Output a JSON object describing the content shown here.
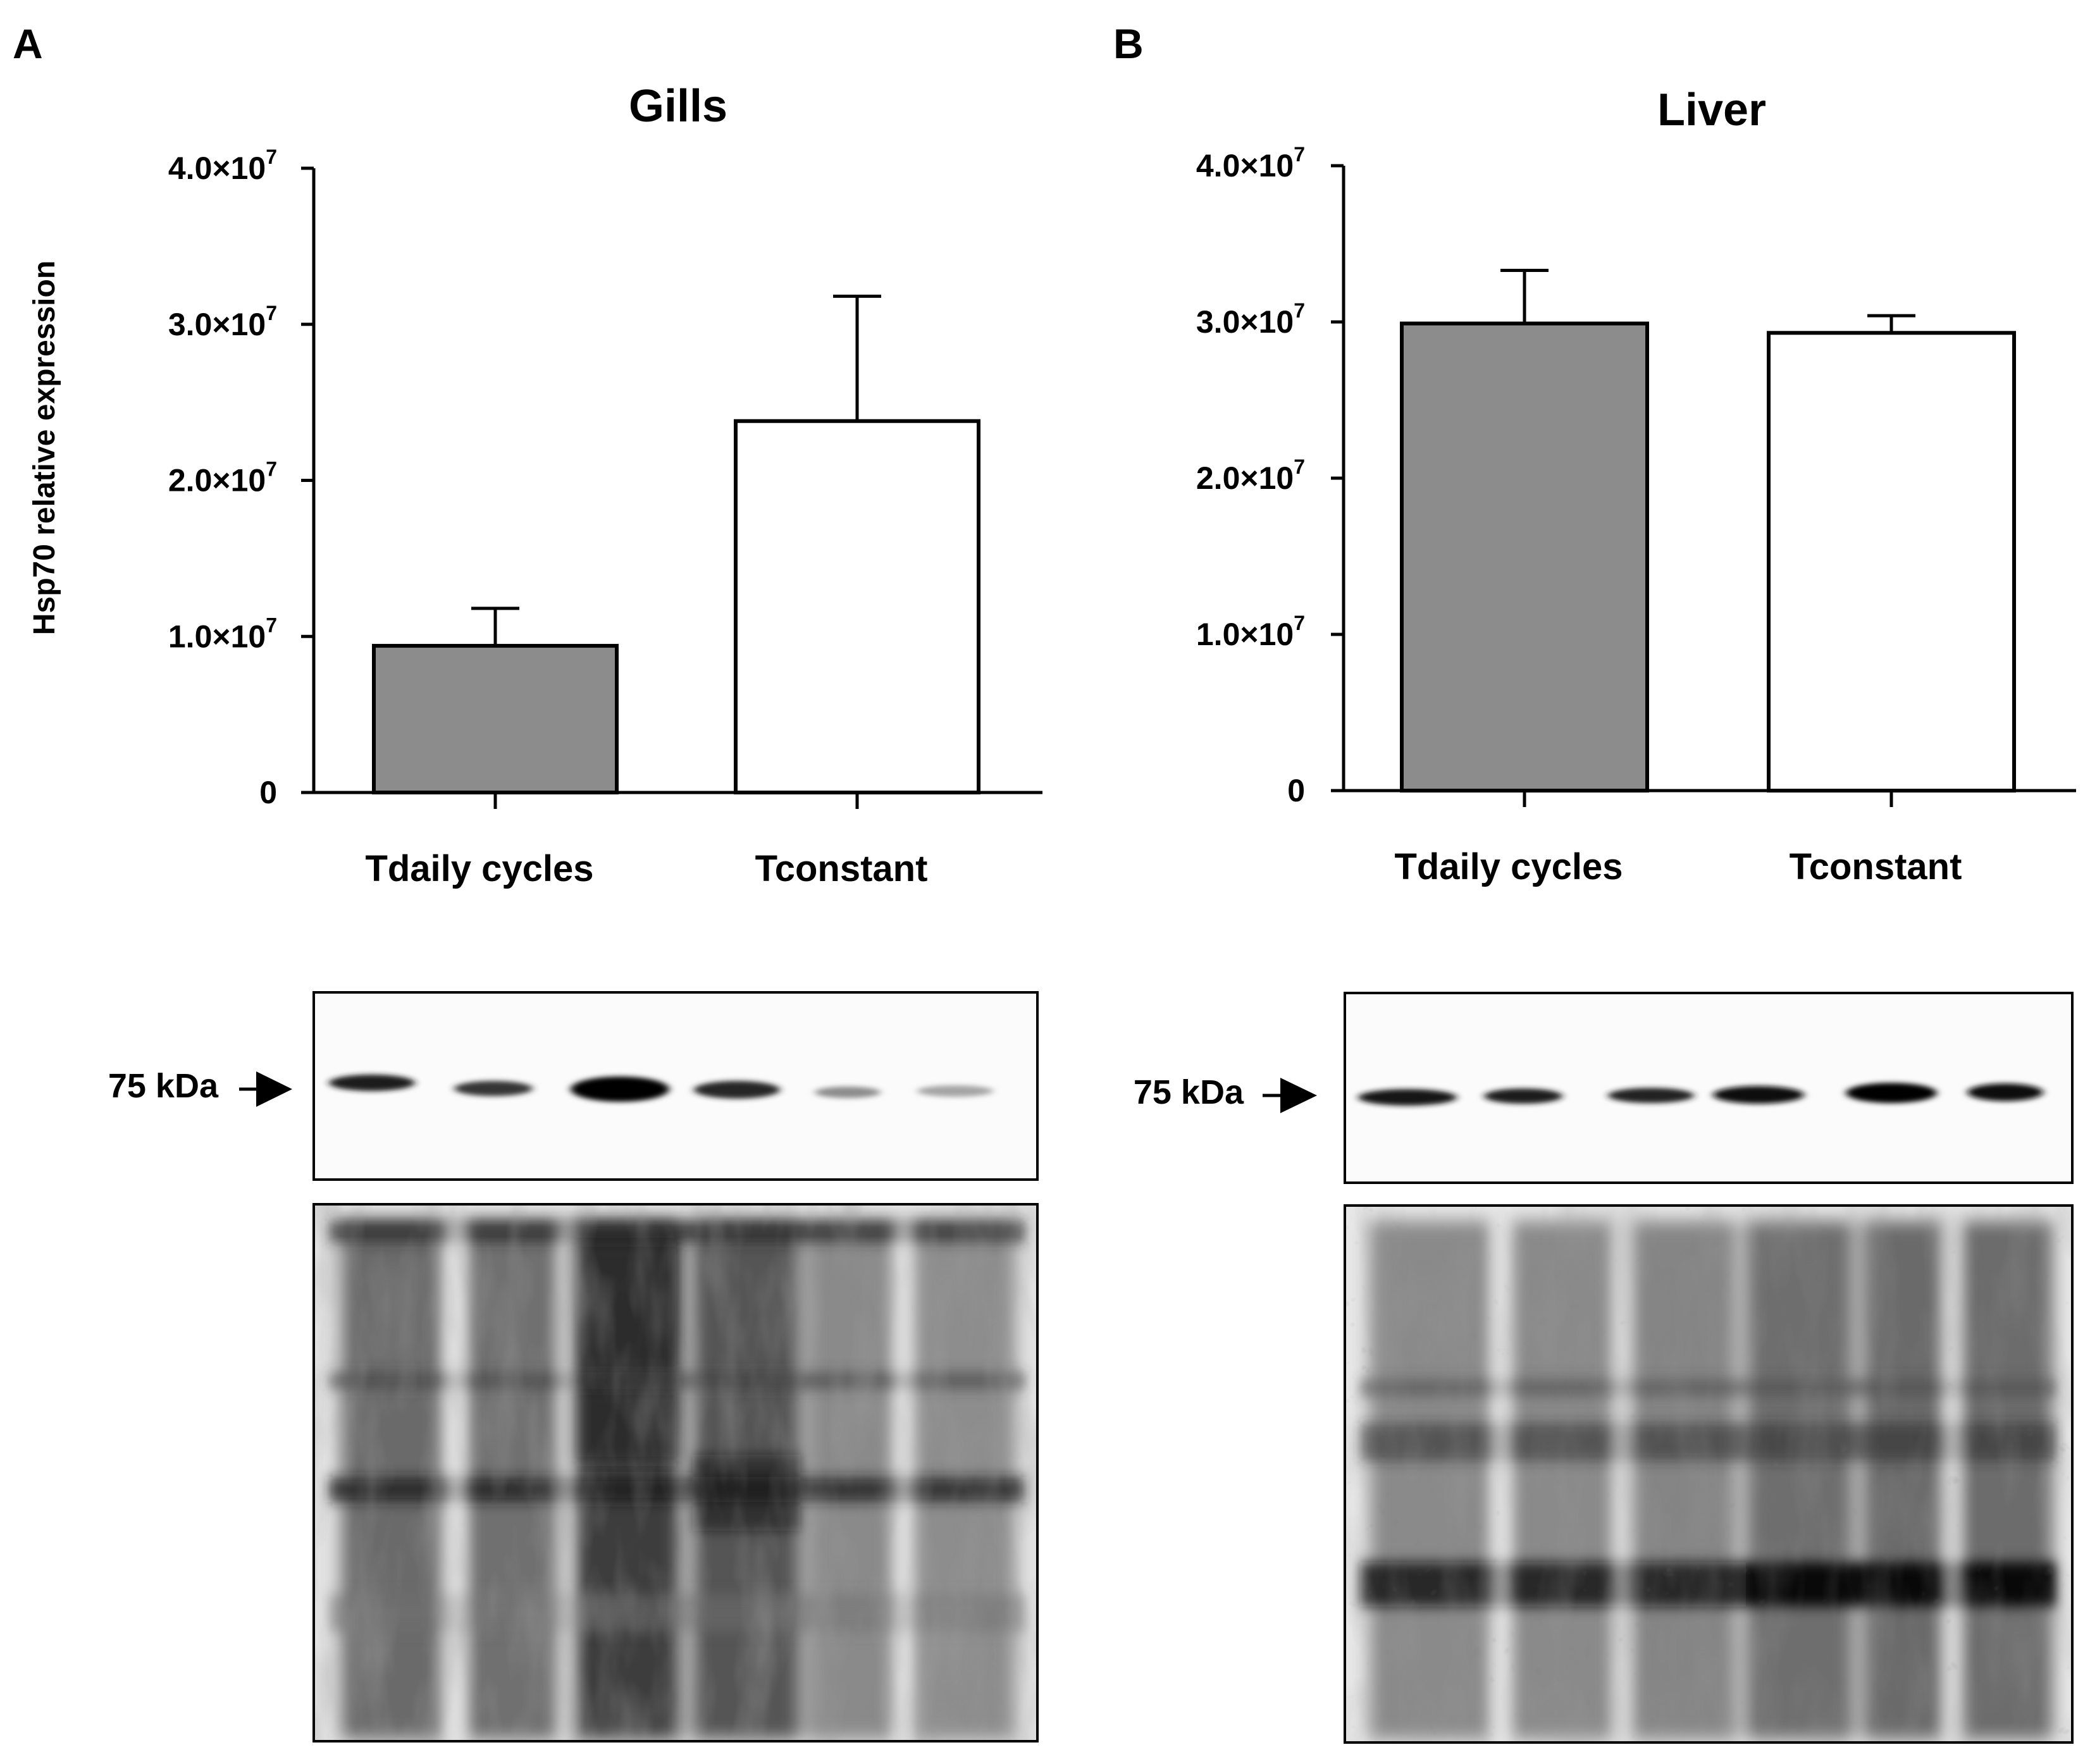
{
  "panels": [
    {
      "letter": "A",
      "tissue": "Gills",
      "marker": "75 kDa"
    },
    {
      "letter": "B",
      "tissue": "Liver",
      "marker": "75 kDa"
    }
  ],
  "colors": {
    "daily": "#8c8c8c",
    "constant": "#ffffff",
    "axis": "#000000"
  },
  "chart_data": [
    {
      "type": "bar",
      "title": "Gills",
      "categories": [
        "Tdaily cycles",
        "Tconstant"
      ],
      "values": [
        9400000,
        23800000
      ],
      "error": [
        2400000,
        8000000
      ],
      "ylabel": "Hsp70 relative expression",
      "xlabel": "",
      "ylim": [
        0,
        40000000
      ],
      "yticks": [
        0,
        10000000,
        20000000,
        30000000,
        40000000
      ],
      "yticklabels": [
        {
          "base": "0",
          "exp": ""
        },
        {
          "base": "1.0×10",
          "exp": "7"
        },
        {
          "base": "2.0×10",
          "exp": "7"
        },
        {
          "base": "3.0×10",
          "exp": "7"
        },
        {
          "base": "4.0×10",
          "exp": "7"
        }
      ],
      "bar_colors": [
        "#8c8c8c",
        "#ffffff"
      ],
      "grid": false,
      "legend": "none"
    },
    {
      "type": "bar",
      "title": "Liver",
      "categories": [
        "Tdaily cycles",
        "Tconstant"
      ],
      "values": [
        29900000,
        29300000
      ],
      "error": [
        3400000,
        1100000
      ],
      "ylabel": "",
      "xlabel": "",
      "ylim": [
        0,
        40000000
      ],
      "yticks": [
        0,
        10000000,
        20000000,
        30000000,
        40000000
      ],
      "yticklabels": [
        {
          "base": "0",
          "exp": ""
        },
        {
          "base": "1.0×10",
          "exp": "7"
        },
        {
          "base": "2.0×10",
          "exp": "7"
        },
        {
          "base": "3.0×10",
          "exp": "7"
        },
        {
          "base": "4.0×10",
          "exp": "7"
        }
      ],
      "bar_colors": [
        "#8c8c8c",
        "#ffffff"
      ],
      "grid": false,
      "legend": "none"
    }
  ]
}
